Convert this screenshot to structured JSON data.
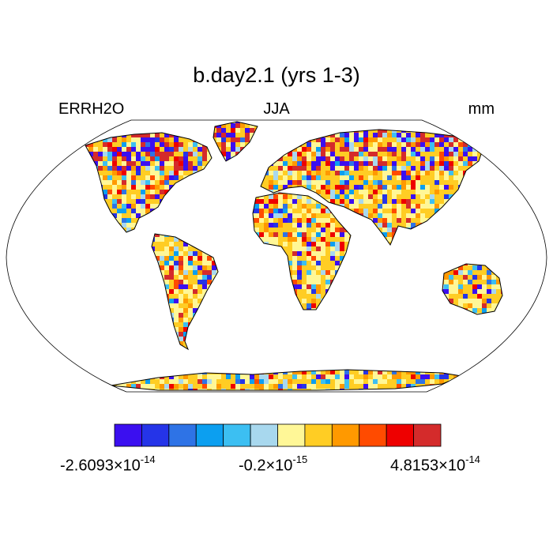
{
  "title": "b.day2.1 (yrs 1-3)",
  "subtitle_left": "ERRH2O",
  "subtitle_center": "JJA",
  "subtitle_right": "mm",
  "colorbar": {
    "colors": [
      "#3b0ff0",
      "#2534e8",
      "#2e73e6",
      "#0c9ff0",
      "#3cbff2",
      "#a8d8ee",
      "#fff797",
      "#ffcd24",
      "#ff9900",
      "#ff4b00",
      "#ee0000",
      "#d42b2b"
    ],
    "labels": [
      {
        "mantissa": "-2.6093",
        "times": "×10",
        "exponent": "-14"
      },
      {
        "mantissa": "-0.2",
        "times": "×10",
        "exponent": "-15"
      },
      {
        "mantissa": "4.8153",
        "times": "×10",
        "exponent": "-14"
      }
    ]
  },
  "map": {
    "projection": "Robinson",
    "land_fill_dominant": "#ffcd24"
  }
}
